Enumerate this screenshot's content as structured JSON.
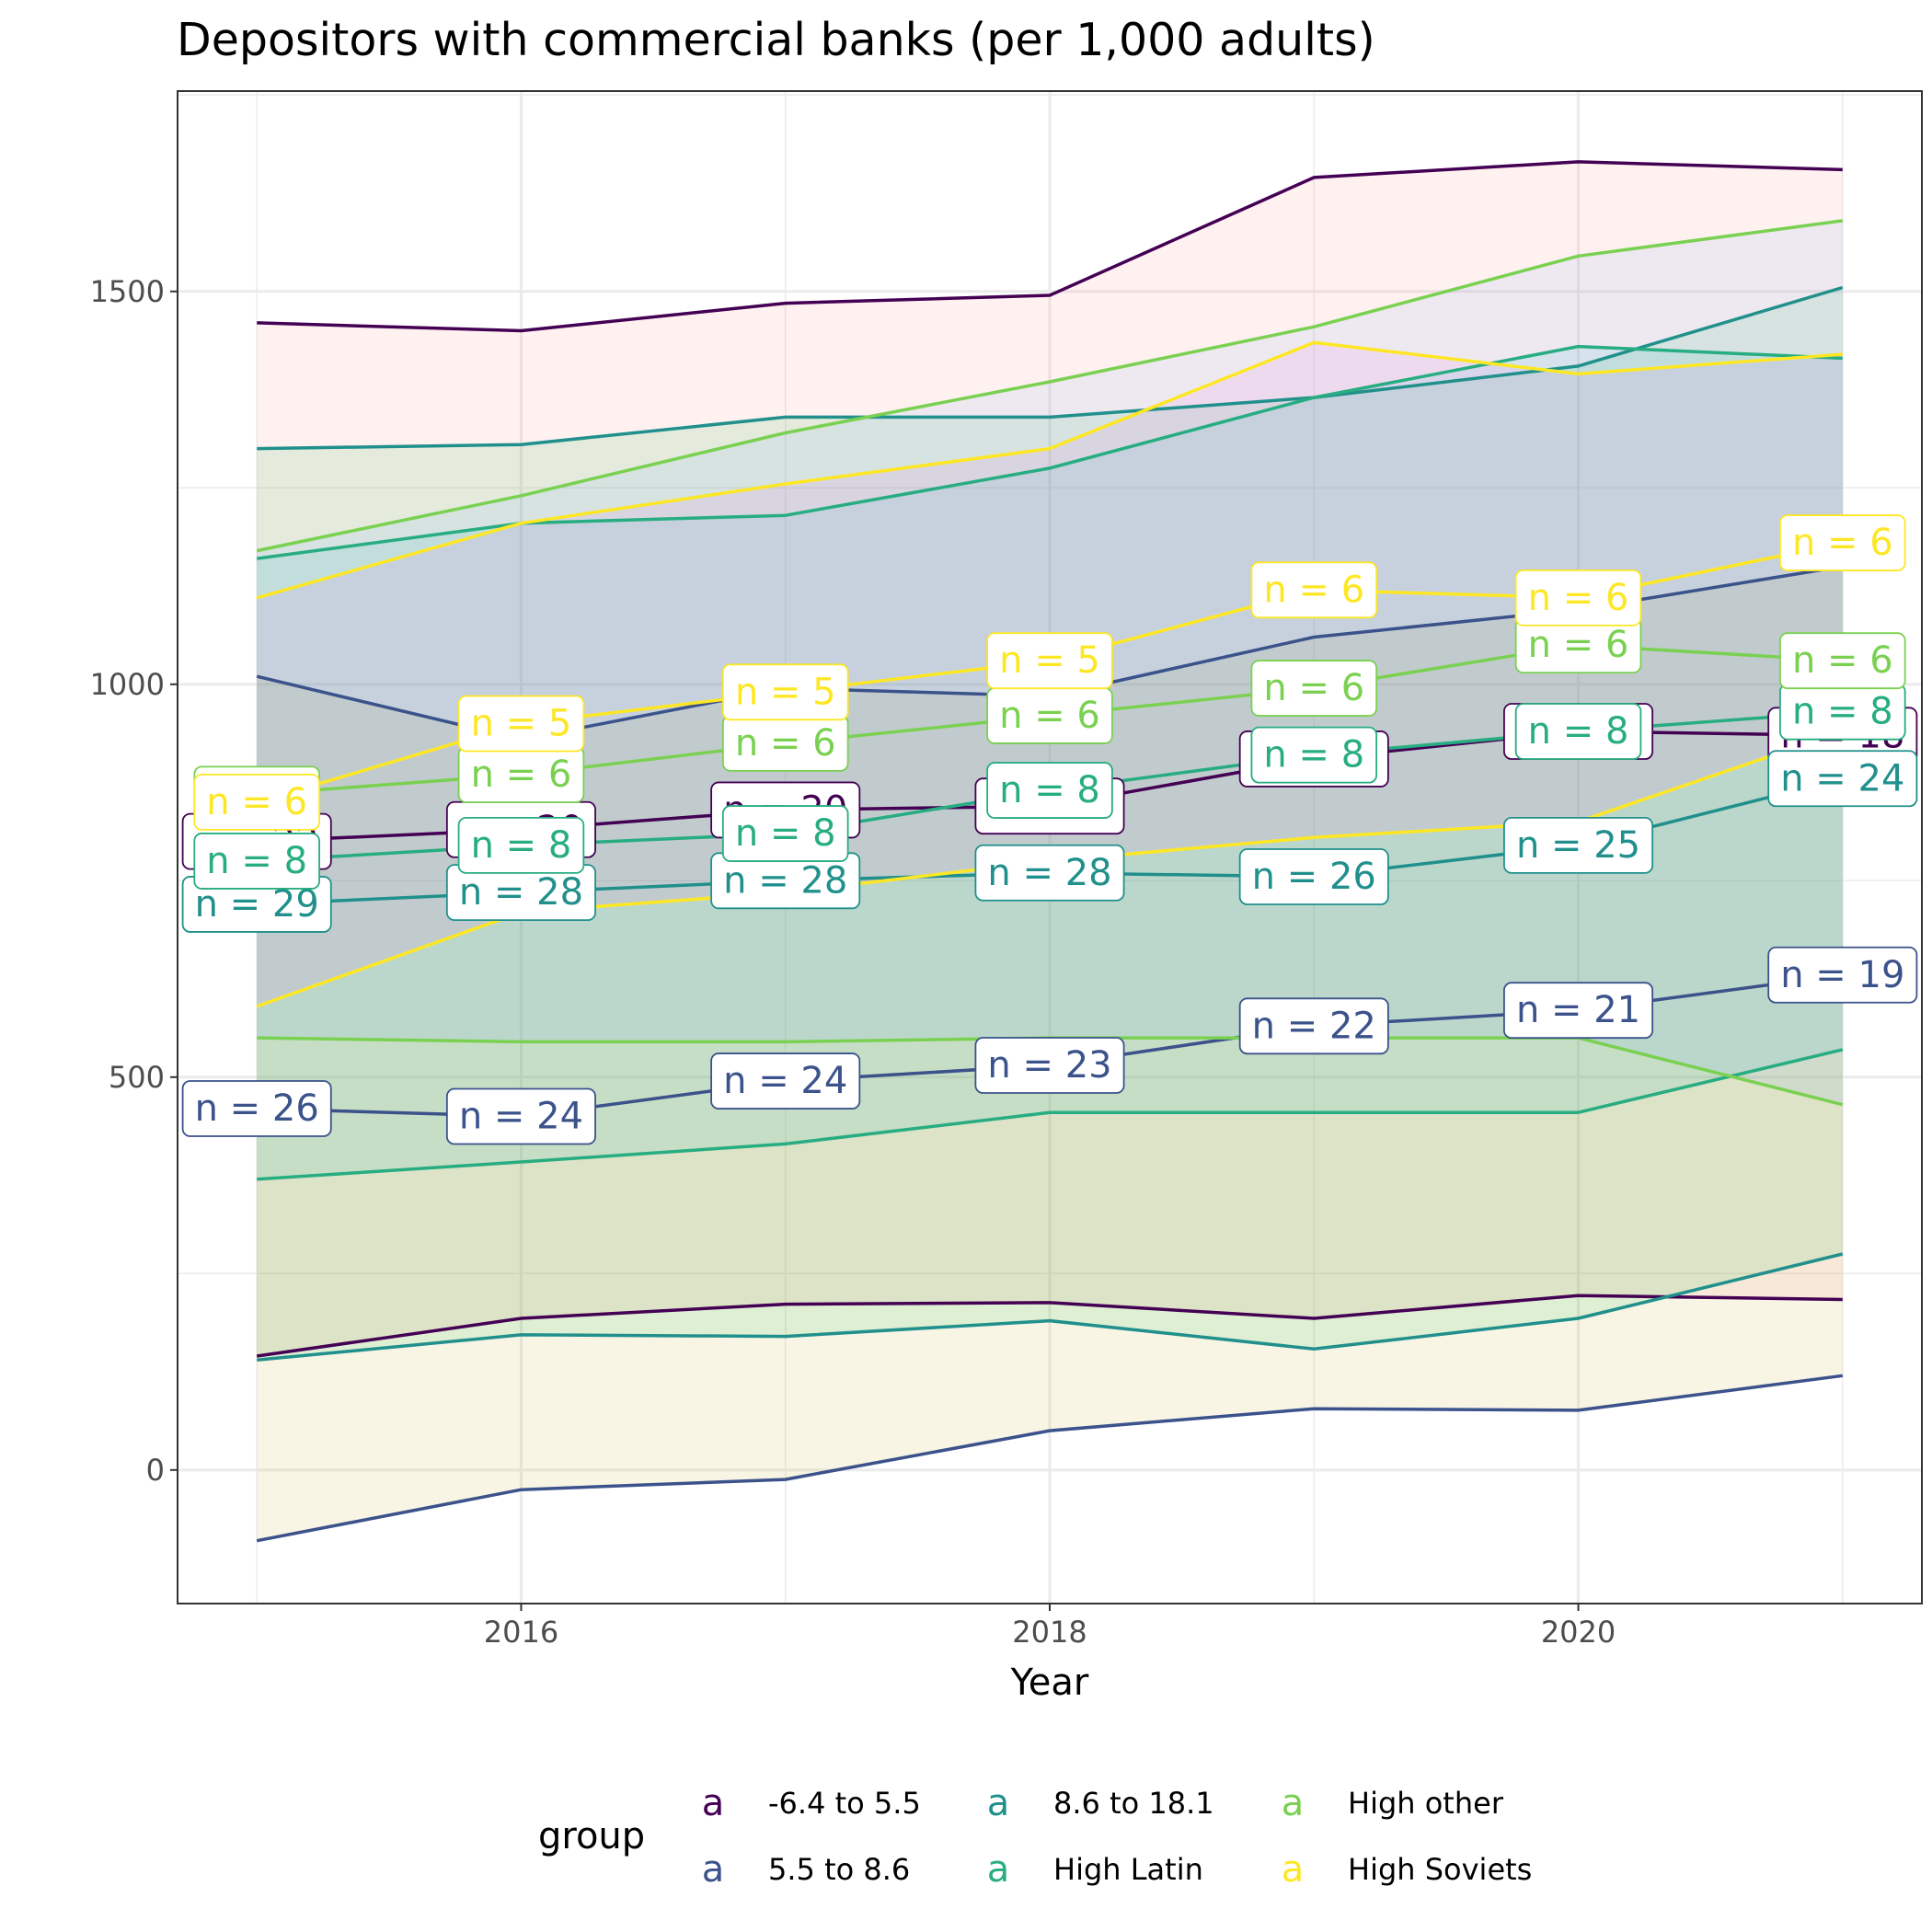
{
  "chart_data": {
    "type": "line",
    "title": "Depositors with commercial banks (per 1,000 adults)",
    "xlabel": "Year",
    "ylabel": "",
    "xlim": [
      2014.7,
      2021.3
    ],
    "ylim": [
      -170,
      1755
    ],
    "x_ticks": [
      2016,
      2018,
      2020
    ],
    "x_tick_labels": [
      "2016",
      "2018",
      "2020"
    ],
    "y_ticks": [
      0,
      500,
      1000,
      1500
    ],
    "y_tick_labels": [
      "0",
      "500",
      "1000",
      "1500"
    ],
    "grid": true,
    "legend": {
      "title": "group",
      "position": "bottom",
      "key_glyph": "a"
    },
    "x": [
      2015,
      2016,
      2017,
      2018,
      2019,
      2020,
      2021
    ],
    "series": [
      {
        "name": "-6.4 to 5.5",
        "color": "#440154",
        "ribbon_fill": "#f8766d",
        "mean": [
          800,
          815,
          840,
          845,
          905,
          940,
          935
        ],
        "upper": [
          1460,
          1450,
          1485,
          1495,
          1645,
          1665,
          1655
        ],
        "lower": [
          145,
          193,
          211,
          213,
          193,
          222,
          217
        ],
        "n": [
          22,
          20,
          20,
          20,
          19,
          19,
          18
        ]
      },
      {
        "name": "5.5 to 8.6",
        "color": "#3b528b",
        "ribbon_fill": "#b79f00",
        "mean": [
          460,
          450,
          495,
          515,
          565,
          585,
          630
        ],
        "upper": [
          1010,
          930,
          995,
          985,
          1060,
          1095,
          1150
        ],
        "lower": [
          -90,
          -25,
          -12,
          50,
          78,
          76,
          120
        ],
        "n": [
          26,
          24,
          24,
          23,
          22,
          21,
          19
        ]
      },
      {
        "name": "8.6 to 18.1",
        "color": "#21908c",
        "ribbon_fill": "#00ba38",
        "mean": [
          720,
          735,
          750,
          760,
          755,
          795,
          880
        ],
        "upper": [
          1300,
          1305,
          1340,
          1340,
          1365,
          1405,
          1505
        ],
        "lower": [
          140,
          172,
          170,
          190,
          154,
          193,
          275
        ],
        "n": [
          29,
          28,
          28,
          28,
          26,
          25,
          24
        ]
      },
      {
        "name": "High Latin",
        "color": "#27ad81",
        "ribbon_fill": "#00bfc4",
        "mean": [
          775,
          795,
          810,
          865,
          910,
          940,
          965
        ],
        "upper": [
          1160,
          1205,
          1215,
          1275,
          1365,
          1430,
          1415
        ],
        "lower": [
          370,
          392,
          415,
          455,
          455,
          455,
          535
        ],
        "n": [
          8,
          8,
          8,
          8,
          8,
          8,
          8
        ]
      },
      {
        "name": "High other",
        "color": "#7ad151",
        "ribbon_fill": "#619cff",
        "mean": [
          860,
          885,
          925,
          960,
          995,
          1050,
          1030
        ],
        "upper": [
          1170,
          1240,
          1320,
          1385,
          1455,
          1545,
          1590
        ],
        "lower": [
          550,
          545,
          545,
          550,
          550,
          550,
          465
        ],
        "n": [
          6,
          6,
          6,
          6,
          6,
          6,
          6
        ]
      },
      {
        "name": "High Soviets",
        "color": "#fde725",
        "ribbon_fill": "#f564e3",
        "mean": [
          850,
          950,
          990,
          1030,
          1120,
          1110,
          1180
        ],
        "upper": [
          1110,
          1205,
          1255,
          1300,
          1435,
          1395,
          1420
        ],
        "lower": [
          590,
          710,
          735,
          775,
          805,
          825,
          940
        ],
        "n": [
          6,
          5,
          5,
          5,
          6,
          6,
          6
        ]
      }
    ]
  }
}
